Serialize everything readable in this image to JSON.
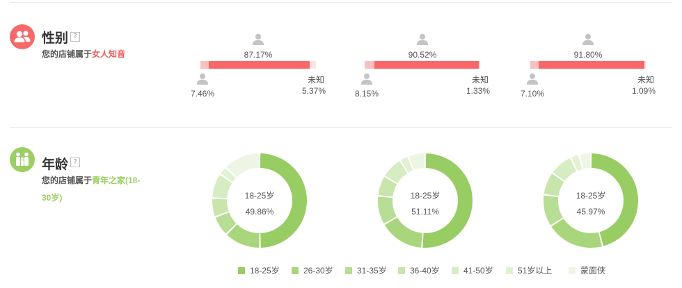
{
  "colors": {
    "female_bar": "#f96868",
    "male_bar": "#f8c0c0",
    "unknown_bar": "#fde2e2",
    "person_icon": "#c4c4c4",
    "gender_icon_bg": "#f96868",
    "age_icon_bg": "#9ccf63"
  },
  "gender": {
    "title": "性别",
    "help_icon": "question-icon",
    "help_text": "?",
    "desc_prefix": "您的店铺属于",
    "desc_highlight": "女人知音",
    "groups": [
      {
        "female": "87.17%",
        "male": "7.46%",
        "unknown_label": "未知",
        "unknown": "5.37%",
        "female_pct": 87.17,
        "male_pct": 7.46,
        "unknown_pct": 5.37
      },
      {
        "female": "90.52%",
        "male": "8.15%",
        "unknown_label": "未知",
        "unknown": "1.33%",
        "female_pct": 90.52,
        "male_pct": 8.15,
        "unknown_pct": 1.33
      },
      {
        "female": "91.80%",
        "male": "7.10%",
        "unknown_label": "未知",
        "unknown": "1.09%",
        "female_pct": 91.8,
        "male_pct": 7.1,
        "unknown_pct": 1.09
      }
    ]
  },
  "age": {
    "title": "年龄",
    "help_text": "?",
    "desc_prefix": "您的店铺属于",
    "desc_highlight_line1": "青年之家(18-",
    "desc_highlight_line2": "30岁)",
    "legend": [
      {
        "label": "18-25岁",
        "color": "#98cd63"
      },
      {
        "label": "26-30岁",
        "color": "#a9d67d"
      },
      {
        "label": "31-35岁",
        "color": "#b8dd95"
      },
      {
        "label": "36-40岁",
        "color": "#c8e5ac"
      },
      {
        "label": "41-50岁",
        "color": "#d6ecc2"
      },
      {
        "label": "51岁以上",
        "color": "#e2f1d4"
      },
      {
        "label": "蒙面侠",
        "color": "#edf6e5"
      }
    ]
  },
  "chart_data": [
    {
      "type": "pie",
      "center_label": "18-25岁",
      "center_value": "49.86%",
      "categories": [
        "18-25岁",
        "26-30岁",
        "31-35岁",
        "36-40岁",
        "41-50岁",
        "51岁以上",
        "蒙面侠"
      ],
      "values": [
        49.86,
        12.5,
        7.0,
        6.5,
        8.5,
        3.0,
        12.64
      ]
    },
    {
      "type": "pie",
      "center_label": "18-25岁",
      "center_value": "51.11%",
      "categories": [
        "18-25岁",
        "26-30岁",
        "31-35岁",
        "36-40岁",
        "41-50岁",
        "51岁以上",
        "蒙面侠"
      ],
      "values": [
        51.11,
        15.5,
        10.0,
        7.0,
        7.5,
        3.0,
        5.89
      ]
    },
    {
      "type": "pie",
      "center_label": "18-25岁",
      "center_value": "45.97%",
      "categories": [
        "18-25岁",
        "26-30岁",
        "31-35岁",
        "36-40岁",
        "41-50岁",
        "51岁以上",
        "蒙面侠"
      ],
      "values": [
        45.97,
        20.0,
        11.0,
        8.0,
        8.0,
        3.0,
        4.03
      ]
    }
  ]
}
